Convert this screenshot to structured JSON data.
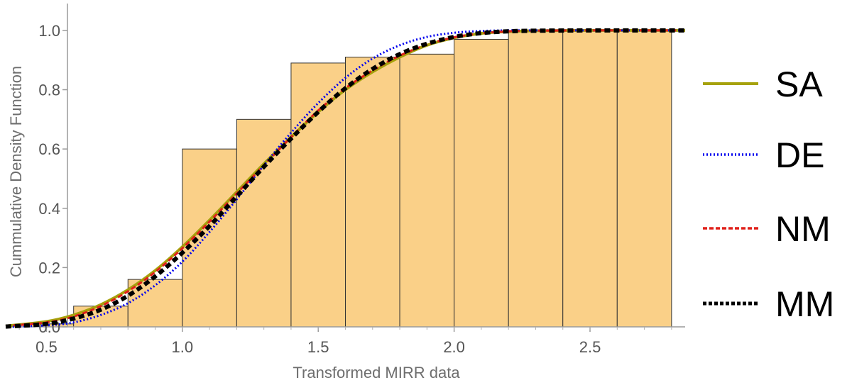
{
  "chart_data": {
    "type": "histogram_with_cdf_curves",
    "xlabel": "Transformed MIRR data",
    "ylabel": "Cummulative Density Function",
    "xlim": [
      0.35,
      2.85
    ],
    "ylim": [
      0.0,
      1.05
    ],
    "x_ticks": [
      {
        "value": 0.5,
        "label": "0.5"
      },
      {
        "value": 1.0,
        "label": "1.0"
      },
      {
        "value": 1.5,
        "label": "1.5"
      },
      {
        "value": 2.0,
        "label": "2.0"
      },
      {
        "value": 2.5,
        "label": "2.5"
      }
    ],
    "y_ticks": [
      {
        "value": 0.0,
        "label": "0.0"
      },
      {
        "value": 0.2,
        "label": "0.2"
      },
      {
        "value": 0.4,
        "label": "0.4"
      },
      {
        "value": 0.6,
        "label": "0.6"
      },
      {
        "value": 0.8,
        "label": "0.8"
      },
      {
        "value": 1.0,
        "label": "1.0"
      }
    ],
    "bars": [
      {
        "x0": 0.4,
        "x1": 0.6,
        "value": 0.01
      },
      {
        "x0": 0.6,
        "x1": 0.8,
        "value": 0.07
      },
      {
        "x0": 0.8,
        "x1": 1.0,
        "value": 0.16
      },
      {
        "x0": 1.0,
        "x1": 1.2,
        "value": 0.6
      },
      {
        "x0": 1.2,
        "x1": 1.4,
        "value": 0.7
      },
      {
        "x0": 1.4,
        "x1": 1.6,
        "value": 0.89
      },
      {
        "x0": 1.6,
        "x1": 1.8,
        "value": 0.91
      },
      {
        "x0": 1.8,
        "x1": 2.0,
        "value": 0.92
      },
      {
        "x0": 2.0,
        "x1": 2.2,
        "value": 0.97
      },
      {
        "x0": 2.2,
        "x1": 2.4,
        "value": 1.0
      },
      {
        "x0": 2.4,
        "x1": 2.6,
        "value": 1.0
      },
      {
        "x0": 2.6,
        "x1": 2.8,
        "value": 1.0
      }
    ],
    "bar_fill": "#fad088",
    "bar_stroke": "#333333",
    "series": [
      {
        "name": "SA",
        "color": "#a6a20c",
        "dash": "solid",
        "x": [
          0.35,
          0.5,
          0.6,
          0.7,
          0.8,
          0.9,
          1.0,
          1.1,
          1.2,
          1.3,
          1.4,
          1.5,
          1.6,
          1.7,
          1.8,
          1.9,
          2.0,
          2.1,
          2.2,
          2.3,
          2.5,
          2.85
        ],
        "y": [
          0.003,
          0.018,
          0.04,
          0.075,
          0.125,
          0.19,
          0.27,
          0.36,
          0.455,
          0.55,
          0.64,
          0.725,
          0.8,
          0.86,
          0.91,
          0.95,
          0.975,
          0.99,
          0.996,
          0.999,
          1.0,
          1.0
        ]
      },
      {
        "name": "DE",
        "color": "#0000ee",
        "dash": "dotted",
        "x": [
          0.35,
          0.5,
          0.6,
          0.7,
          0.8,
          0.9,
          1.0,
          1.1,
          1.2,
          1.3,
          1.4,
          1.5,
          1.6,
          1.7,
          1.8,
          1.9,
          2.0,
          2.1,
          2.2,
          2.3,
          2.5,
          2.85
        ],
        "y": [
          0.0,
          0.005,
          0.015,
          0.04,
          0.08,
          0.14,
          0.22,
          0.32,
          0.43,
          0.545,
          0.655,
          0.755,
          0.84,
          0.905,
          0.95,
          0.978,
          0.992,
          0.998,
          1.0,
          1.0,
          1.0,
          1.0
        ]
      },
      {
        "name": "NM",
        "color": "#e0201a",
        "dash": "dashed",
        "x": [
          0.35,
          0.5,
          0.6,
          0.7,
          0.8,
          0.9,
          1.0,
          1.1,
          1.2,
          1.3,
          1.4,
          1.5,
          1.6,
          1.7,
          1.8,
          1.9,
          2.0,
          2.1,
          2.2,
          2.3,
          2.5,
          2.85
        ],
        "y": [
          0.003,
          0.015,
          0.035,
          0.07,
          0.12,
          0.185,
          0.265,
          0.355,
          0.45,
          0.545,
          0.64,
          0.73,
          0.805,
          0.865,
          0.915,
          0.952,
          0.977,
          0.99,
          0.997,
          0.999,
          1.0,
          1.0
        ]
      },
      {
        "name": "MM",
        "color": "#000000",
        "dash": "dashed-thick",
        "x": [
          0.35,
          0.5,
          0.6,
          0.7,
          0.8,
          0.9,
          1.0,
          1.1,
          1.2,
          1.3,
          1.4,
          1.5,
          1.6,
          1.7,
          1.8,
          1.9,
          2.0,
          2.1,
          2.2,
          2.3,
          2.5,
          2.85
        ],
        "y": [
          0.001,
          0.01,
          0.028,
          0.058,
          0.105,
          0.17,
          0.25,
          0.34,
          0.44,
          0.54,
          0.635,
          0.725,
          0.805,
          0.87,
          0.92,
          0.955,
          0.978,
          0.991,
          0.997,
          0.999,
          1.0,
          1.0
        ]
      }
    ],
    "legend": {
      "placement": "right"
    },
    "grid": false
  }
}
